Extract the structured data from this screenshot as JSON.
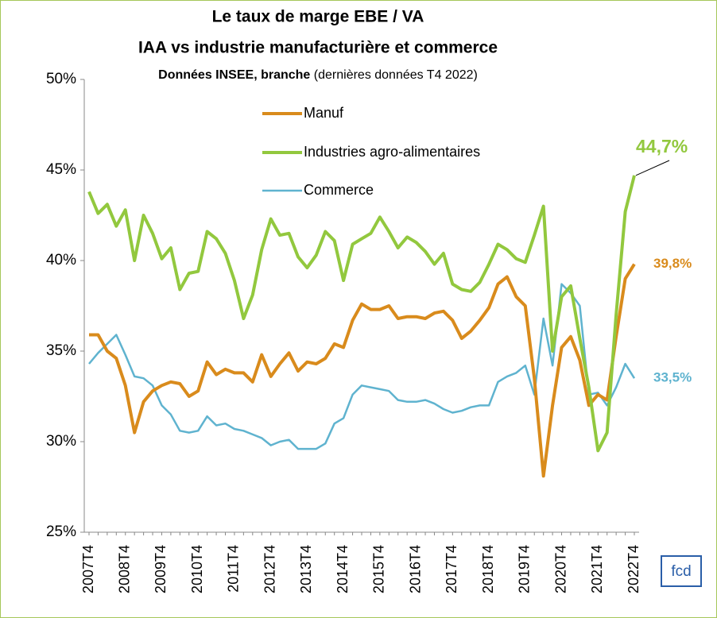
{
  "chart_data": {
    "type": "line",
    "title": "Le taux de marge EBE / VA",
    "title_line2": "IAA vs industrie manufacturière et commerce",
    "subtitle": "Données INSEE, branche",
    "subtitle_note": "(dernières données T4 2022)",
    "logo": "fcd",
    "categories": [
      "2007T4",
      null,
      null,
      null,
      "2008T4",
      null,
      null,
      null,
      "2009T4",
      null,
      null,
      null,
      "2010T4",
      null,
      null,
      null,
      "2011T4",
      null,
      null,
      null,
      "2012T4",
      null,
      null,
      null,
      "2013T4",
      null,
      null,
      null,
      "2014T4",
      null,
      null,
      null,
      "2015T4",
      null,
      null,
      null,
      "2016T4",
      null,
      null,
      null,
      "2017T4",
      null,
      null,
      null,
      "2018T4",
      null,
      null,
      null,
      "2019T4",
      null,
      null,
      null,
      "2020T4",
      null,
      null,
      null,
      "2021T4",
      null,
      null,
      null,
      "2022T4"
    ],
    "series": [
      {
        "name": "Manuf",
        "color": "#d98b1c",
        "width": 4,
        "end_label": "39,8%",
        "values": [
          35.9,
          35.9,
          35.0,
          34.6,
          33.1,
          30.5,
          32.2,
          32.8,
          33.1,
          33.3,
          33.2,
          32.5,
          32.8,
          34.4,
          33.7,
          34.0,
          33.8,
          33.8,
          33.3,
          34.8,
          33.6,
          34.3,
          34.9,
          33.9,
          34.4,
          34.3,
          34.6,
          35.4,
          35.2,
          36.7,
          37.6,
          37.3,
          37.3,
          37.5,
          36.8,
          36.9,
          36.9,
          36.8,
          37.1,
          37.2,
          36.7,
          35.7,
          36.1,
          36.7,
          37.4,
          38.7,
          39.1,
          38.0,
          37.5,
          33.5,
          28.1,
          32.0,
          35.2,
          35.8,
          34.5,
          32.0,
          32.6,
          32.3,
          35.8,
          39.0,
          39.8
        ]
      },
      {
        "name": "Industries agro-alimentaires",
        "color": "#92c83e",
        "width": 4,
        "end_label": "44,7%",
        "values": [
          43.8,
          42.6,
          43.1,
          41.9,
          42.8,
          40.0,
          42.5,
          41.5,
          40.1,
          40.7,
          38.4,
          39.3,
          39.4,
          41.6,
          41.2,
          40.4,
          38.9,
          36.8,
          38.1,
          40.6,
          42.3,
          41.4,
          41.5,
          40.2,
          39.6,
          40.3,
          41.6,
          41.1,
          38.9,
          40.9,
          41.2,
          41.5,
          42.4,
          41.6,
          40.7,
          41.3,
          41.0,
          40.5,
          39.8,
          40.4,
          38.7,
          38.4,
          38.3,
          38.8,
          39.8,
          40.9,
          40.6,
          40.1,
          39.9,
          41.4,
          43.0,
          35.0,
          38.0,
          38.6,
          35.7,
          33.0,
          29.5,
          30.5,
          37.0,
          42.7,
          44.7
        ]
      },
      {
        "name": "Commerce",
        "color": "#5fb3cf",
        "width": 2.5,
        "end_label": "33,5%",
        "values": [
          34.3,
          34.9,
          35.4,
          35.9,
          34.8,
          33.6,
          33.5,
          33.1,
          32.0,
          31.5,
          30.6,
          30.5,
          30.6,
          31.4,
          30.9,
          31.0,
          30.7,
          30.6,
          30.4,
          30.2,
          29.8,
          30.0,
          30.1,
          29.6,
          29.6,
          29.6,
          29.9,
          31.0,
          31.3,
          32.6,
          33.1,
          33.0,
          32.9,
          32.8,
          32.3,
          32.2,
          32.2,
          32.3,
          32.1,
          31.8,
          31.6,
          31.7,
          31.9,
          32.0,
          32.0,
          33.3,
          33.6,
          33.8,
          34.2,
          32.6,
          36.8,
          34.2,
          38.7,
          38.2,
          37.5,
          32.6,
          32.7,
          32.0,
          33.0,
          34.3,
          33.5
        ]
      }
    ],
    "ylim": [
      25,
      50
    ],
    "yticks": [
      {
        "value": 25,
        "label": "25%"
      },
      {
        "value": 30,
        "label": "30%"
      },
      {
        "value": 35,
        "label": "35%"
      },
      {
        "value": 40,
        "label": "40%"
      },
      {
        "value": 45,
        "label": "45%"
      },
      {
        "value": 50,
        "label": "50%"
      }
    ]
  }
}
